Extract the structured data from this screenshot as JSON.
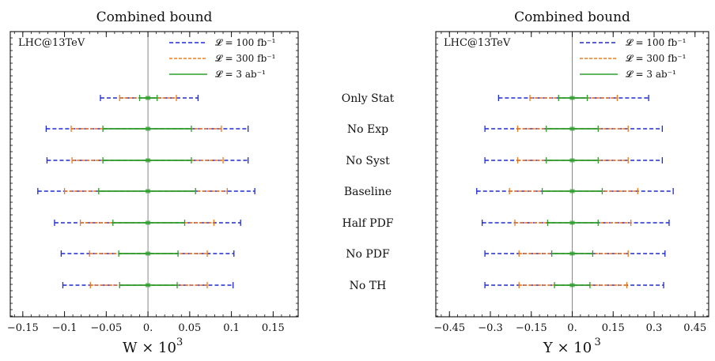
{
  "chart_data": [
    {
      "type": "errorbar",
      "title": "Combined bound",
      "xlabel": "W × 10",
      "xlabel_sup": "3",
      "annotation": "LHC@13TeV",
      "xlim": [
        -0.165,
        0.18
      ],
      "xticks": [
        -0.15,
        -0.1,
        -0.05,
        0,
        0.05,
        0.1,
        0.15
      ],
      "xtick_labels": [
        "−0.15",
        "−0.1",
        "−0.05",
        "0.",
        "0.05",
        "0.1",
        "0.15"
      ],
      "categories": [
        "Only Stat",
        "No Exp",
        "No Syst",
        "Baseline",
        "Half PDF",
        "No PDF",
        "No TH"
      ],
      "legend": {
        "position": "top-right"
      },
      "series": [
        {
          "name": "𝓛 = 100 fb⁻¹",
          "color": "#1f2bd4",
          "style": "dashed",
          "intervals": [
            [
              -0.057,
              0.06
            ],
            [
              -0.122,
              0.12
            ],
            [
              -0.121,
              0.12
            ],
            [
              -0.132,
              0.128
            ],
            [
              -0.112,
              0.111
            ],
            [
              -0.104,
              0.103
            ],
            [
              -0.102,
              0.102
            ]
          ]
        },
        {
          "name": "𝓛 = 300 fb⁻¹",
          "color": "#f07a1c",
          "style": "dashed",
          "intervals": [
            [
              -0.034,
              0.034
            ],
            [
              -0.092,
              0.088
            ],
            [
              -0.091,
              0.09
            ],
            [
              -0.1,
              0.095
            ],
            [
              -0.081,
              0.079
            ],
            [
              -0.07,
              0.071
            ],
            [
              -0.069,
              0.071
            ]
          ]
        },
        {
          "name": "𝓛 = 3 ab⁻¹",
          "color": "#2ca02c",
          "style": "solid",
          "intervals": [
            [
              -0.01,
              0.011
            ],
            [
              -0.054,
              0.052
            ],
            [
              -0.054,
              0.052
            ],
            [
              -0.059,
              0.057
            ],
            [
              -0.042,
              0.044
            ],
            [
              -0.035,
              0.036
            ],
            [
              -0.034,
              0.035
            ]
          ]
        }
      ]
    },
    {
      "type": "errorbar",
      "title": "Combined bound",
      "xlabel": "Y × 10",
      "xlabel_sup": "3",
      "annotation": "LHC@13TeV",
      "xlim": [
        -0.5,
        0.5
      ],
      "xticks": [
        -0.45,
        -0.3,
        -0.15,
        0,
        0.15,
        0.3,
        0.45
      ],
      "xtick_labels": [
        "−0.45",
        "−0.3",
        "−0.15",
        "0.",
        "0.15",
        "0.3",
        "0.45"
      ],
      "categories": [
        "Only Stat",
        "No Exp",
        "No Syst",
        "Baseline",
        "Half PDF",
        "No PDF",
        "No TH"
      ],
      "legend": {
        "position": "top-right"
      },
      "series": [
        {
          "name": "𝓛 = 100 fb⁻¹",
          "color": "#1f2bd4",
          "style": "dashed",
          "intervals": [
            [
              -0.27,
              0.28
            ],
            [
              -0.32,
              0.33
            ],
            [
              -0.32,
              0.33
            ],
            [
              -0.35,
              0.37
            ],
            [
              -0.33,
              0.355
            ],
            [
              -0.32,
              0.34
            ],
            [
              -0.32,
              0.335
            ]
          ]
        },
        {
          "name": "𝓛 = 300 fb⁻¹",
          "color": "#f07a1c",
          "style": "dashed",
          "intervals": [
            [
              -0.155,
              0.165
            ],
            [
              -0.2,
              0.205
            ],
            [
              -0.2,
              0.205
            ],
            [
              -0.23,
              0.24
            ],
            [
              -0.21,
              0.215
            ],
            [
              -0.195,
              0.205
            ],
            [
              -0.195,
              0.2
            ]
          ]
        },
        {
          "name": "𝓛 = 3 ab⁻¹",
          "color": "#2ca02c",
          "style": "solid",
          "intervals": [
            [
              -0.05,
              0.055
            ],
            [
              -0.095,
              0.095
            ],
            [
              -0.095,
              0.095
            ],
            [
              -0.11,
              0.11
            ],
            [
              -0.09,
              0.095
            ],
            [
              -0.075,
              0.075
            ],
            [
              -0.065,
              0.065
            ]
          ]
        }
      ]
    }
  ]
}
